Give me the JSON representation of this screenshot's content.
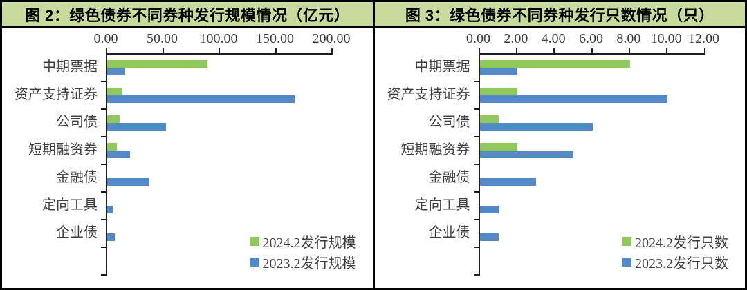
{
  "figure": {
    "border_color": "#000000",
    "header_bg": "#C9DA9F",
    "text_color": "#404040",
    "axis_color": "#1F1F1F",
    "series_green": "#8FC95B",
    "series_blue": "#5489C8"
  },
  "chart_data": [
    {
      "type": "bar",
      "orientation": "horizontal",
      "title": "图 2：绿色债券不同券种发行规模情况（亿元）",
      "categories": [
        "中期票据",
        "资产支持证券",
        "公司债",
        "短期融资券",
        "金融债",
        "定向工具",
        "企业债"
      ],
      "series": [
        {
          "name": "2024.2发行规模",
          "color": "#8FC95B",
          "values": [
            89,
            13.5,
            11,
            8.5,
            0,
            0,
            0
          ]
        },
        {
          "name": "2023.2发行规模",
          "color": "#5489C8",
          "values": [
            16,
            166,
            52,
            20,
            37.5,
            5,
            7
          ]
        }
      ],
      "xlim": [
        0,
        200
      ],
      "xticks": [
        0,
        50,
        100,
        150,
        200
      ],
      "xtick_labels": [
        "0.00",
        "50.00",
        "100.00",
        "150.00",
        "200.00"
      ],
      "value_axis_position": "top",
      "grid": false,
      "legend_position": "bottom-right"
    },
    {
      "type": "bar",
      "orientation": "horizontal",
      "title": "图 3：绿色债券不同券种发行只数情况（只）",
      "categories": [
        "中期票据",
        "资产支持证券",
        "公司债",
        "短期融资券",
        "金融债",
        "定向工具",
        "企业债"
      ],
      "series": [
        {
          "name": "2024.2发行只数",
          "color": "#8FC95B",
          "values": [
            8,
            2,
            1,
            2,
            0,
            0,
            0
          ]
        },
        {
          "name": "2023.2发行只数",
          "color": "#5489C8",
          "values": [
            2,
            10,
            6,
            5,
            3,
            1,
            1
          ]
        }
      ],
      "xlim": [
        0,
        12
      ],
      "xticks": [
        0,
        2,
        4,
        6,
        8,
        10,
        12
      ],
      "xtick_labels": [
        "0.00",
        "2.00",
        "4.00",
        "6.00",
        "8.00",
        "10.00",
        "12.00"
      ],
      "value_axis_position": "top",
      "grid": false,
      "legend_position": "bottom-right"
    }
  ]
}
